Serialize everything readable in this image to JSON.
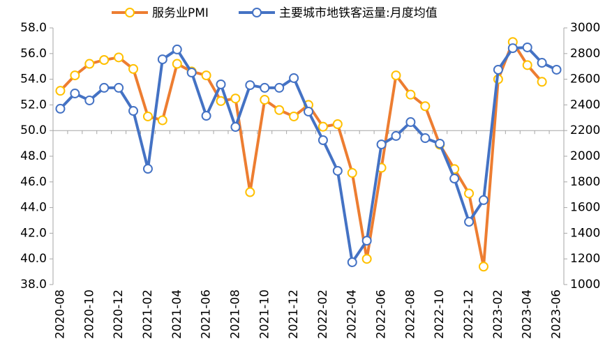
{
  "chart_data": {
    "type": "line",
    "categories": [
      "2020-08",
      null,
      "2020-10",
      null,
      "2020-12",
      null,
      "2021-02",
      null,
      "2021-04",
      null,
      "2021-06",
      null,
      "2021-08",
      null,
      "2021-10",
      null,
      "2021-12",
      null,
      "2022-02",
      null,
      "2022-04",
      null,
      "2022-06",
      null,
      "2022-08",
      null,
      "2022-10",
      null,
      "2022-12",
      null,
      "2023-02",
      null,
      "2023-04",
      null,
      "2023-06"
    ],
    "series": [
      {
        "name": "服务业PMI",
        "color": "#ed7d31",
        "marker_edge_color": "#ffc000",
        "values": [
          53.1,
          54.3,
          55.2,
          55.5,
          55.7,
          54.8,
          51.1,
          50.8,
          55.2,
          54.6,
          54.3,
          52.3,
          52.5,
          45.2,
          52.4,
          51.6,
          51.1,
          52.0,
          50.3,
          50.5,
          46.7,
          40.0,
          47.1,
          54.3,
          52.8,
          51.9,
          48.9,
          47.0,
          45.1,
          39.4,
          54.0,
          56.9,
          55.1,
          53.8,
          null
        ]
      },
      {
        "name": "主要城市地铁客运量:月度均值",
        "color": "#4472c4",
        "marker_edge_color": "#4472c4",
        "axis": "y2",
        "values": [
          2370,
          2489,
          2435,
          2533,
          2533,
          2353,
          1902,
          2755,
          2832,
          2652,
          2315,
          2560,
          2228,
          2554,
          2533,
          2533,
          2609,
          2348,
          2125,
          1886,
          1174,
          1342,
          2092,
          2158,
          2266,
          2141,
          2098,
          1826,
          1489,
          1658,
          2674,
          2842,
          2848,
          2728,
          2674
        ]
      }
    ],
    "ylim": [
      38,
      58
    ],
    "yticks": [
      {
        "value": 38,
        "label": "38.0"
      },
      {
        "value": 40,
        "label": "40.0"
      },
      {
        "value": 42,
        "label": "42.0"
      },
      {
        "value": 44,
        "label": "44.0"
      },
      {
        "value": 46,
        "label": "46.0"
      },
      {
        "value": 48,
        "label": "48.0"
      },
      {
        "value": 50,
        "label": "50.0"
      },
      {
        "value": 52,
        "label": "52.0"
      },
      {
        "value": 54,
        "label": "54.0"
      },
      {
        "value": 56,
        "label": "56.0"
      },
      {
        "value": 58,
        "label": "58.0"
      }
    ],
    "y2lim": [
      1000,
      3000
    ],
    "y2ticks": [
      1000,
      1200,
      1400,
      1600,
      1800,
      2000,
      2200,
      2400,
      2600,
      2800,
      3000
    ],
    "x_axis_crossing": 50,
    "legend": "top"
  }
}
